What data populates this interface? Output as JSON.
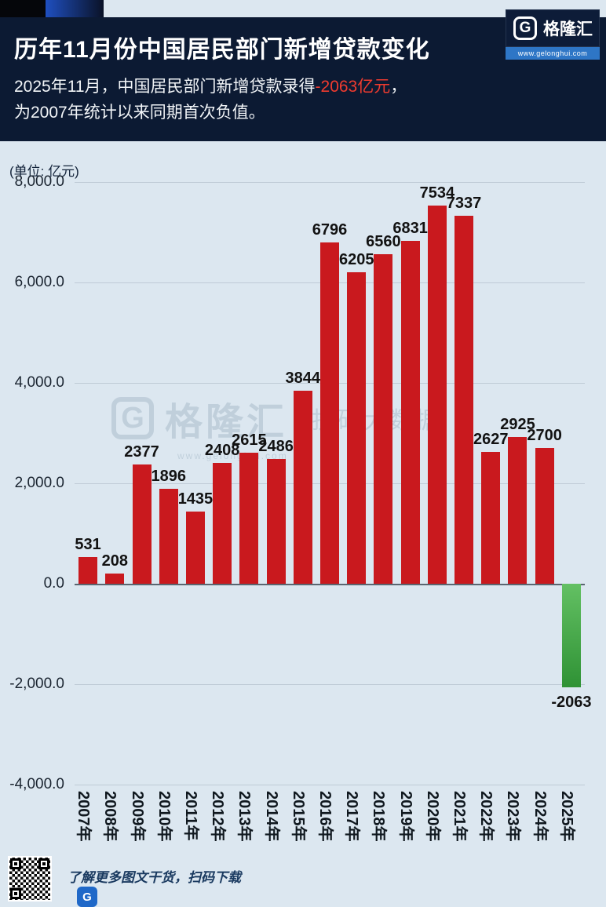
{
  "header": {
    "title": "历年11月份中国居民部门新增贷款变化",
    "subtitle_prefix": "2025年11月，中国居民部门新增贷款录得",
    "subtitle_highlight": "-2063亿元",
    "subtitle_suffix": "，",
    "subtitle_line2": "为2007年统计以来同期首次负值。"
  },
  "logo": {
    "glyph": "G",
    "name": "格隆汇",
    "url": "www.gelonghui.com"
  },
  "chart_data": {
    "type": "bar",
    "title": "历年11月份中国居民部门新增贷款变化",
    "unit_label": "(单位: 亿元)",
    "categories": [
      "2007年",
      "2008年",
      "2009年",
      "2010年",
      "2011年",
      "2012年",
      "2013年",
      "2014年",
      "2015年",
      "2016年",
      "2017年",
      "2018年",
      "2019年",
      "2020年",
      "2021年",
      "2022年",
      "2023年",
      "2024年",
      "2025年"
    ],
    "values": [
      531,
      208,
      2377,
      1896,
      1435,
      2408,
      2615,
      2486,
      3844,
      6796,
      6205,
      6560,
      6831,
      7534,
      7337,
      2627,
      2925,
      2700,
      -2063
    ],
    "ylim": [
      -4000,
      8000
    ],
    "yticks": [
      8000,
      6000,
      4000,
      2000,
      0,
      -2000,
      -4000
    ],
    "ytick_labels": [
      "8,000.0",
      "6,000.0",
      "4,000.0",
      "2,000.0",
      "0.0",
      "-2,000.0",
      "-4,000.0"
    ],
    "grid": true,
    "legend": false,
    "bar_color_positive": "#c9191e",
    "bar_color_negative_top": "#63c063",
    "bar_color_negative_bottom": "#2f9235"
  },
  "watermark": {
    "glyph": "G",
    "main": "格隆汇",
    "side": "投研大数据",
    "sub": "www.gelonghui.com"
  },
  "footer": {
    "text": "了解更多图文干货，扫码下载",
    "mini_logo_glyph": "G"
  },
  "colors": {
    "header_bg": "#0c1a33",
    "page_bg": "#dce7f0",
    "highlight_red": "#ef3b2f",
    "logo_bar_blue": "#2e76c6"
  }
}
